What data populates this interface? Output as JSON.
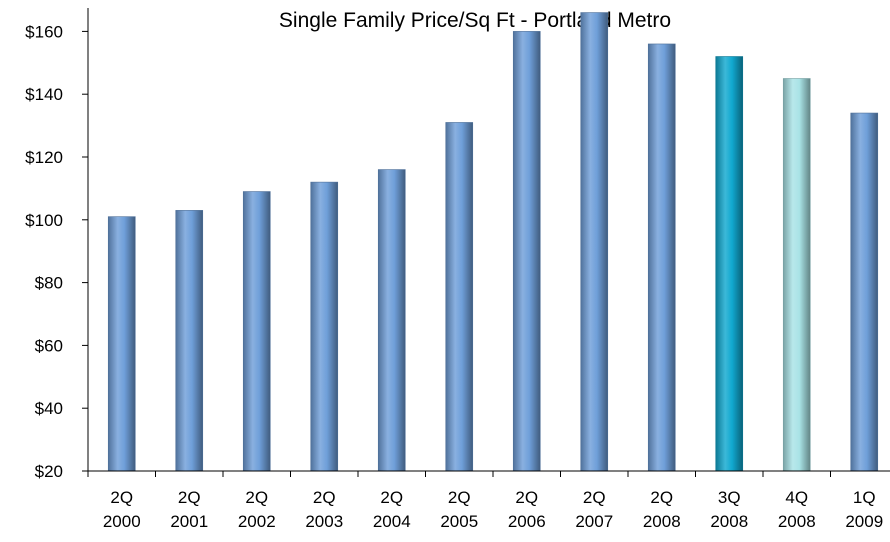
{
  "chart_data": {
    "type": "bar",
    "title": "Single Family Price/Sq Ft - Portland Metro",
    "xlabel": "",
    "ylabel": "",
    "ylim": [
      20,
      170
    ],
    "yticks": [
      20,
      40,
      60,
      80,
      100,
      120,
      140,
      160
    ],
    "ytick_labels": [
      "$20",
      "$40",
      "$60",
      "$80",
      "$100",
      "$120",
      "$140",
      "$160"
    ],
    "grid": false,
    "categories": [
      [
        "2Q",
        "2000"
      ],
      [
        "2Q",
        "2001"
      ],
      [
        "2Q",
        "2002"
      ],
      [
        "2Q",
        "2003"
      ],
      [
        "2Q",
        "2004"
      ],
      [
        "2Q",
        "2005"
      ],
      [
        "2Q",
        "2006"
      ],
      [
        "2Q",
        "2007"
      ],
      [
        "2Q",
        "2008"
      ],
      [
        "3Q",
        "2008"
      ],
      [
        "4Q",
        "2008"
      ],
      [
        "1Q",
        "2009"
      ]
    ],
    "values": [
      101,
      103,
      109,
      112,
      116,
      131,
      160,
      166,
      156,
      152,
      145,
      134
    ],
    "bar_colors": [
      "#6f9fd9",
      "#6f9fd9",
      "#6f9fd9",
      "#6f9fd9",
      "#6f9fd9",
      "#6f9fd9",
      "#6f9fd9",
      "#6f9fd9",
      "#6f9fd9",
      "#11a9d0",
      "#a9e3e6",
      "#6f9fd9"
    ]
  }
}
